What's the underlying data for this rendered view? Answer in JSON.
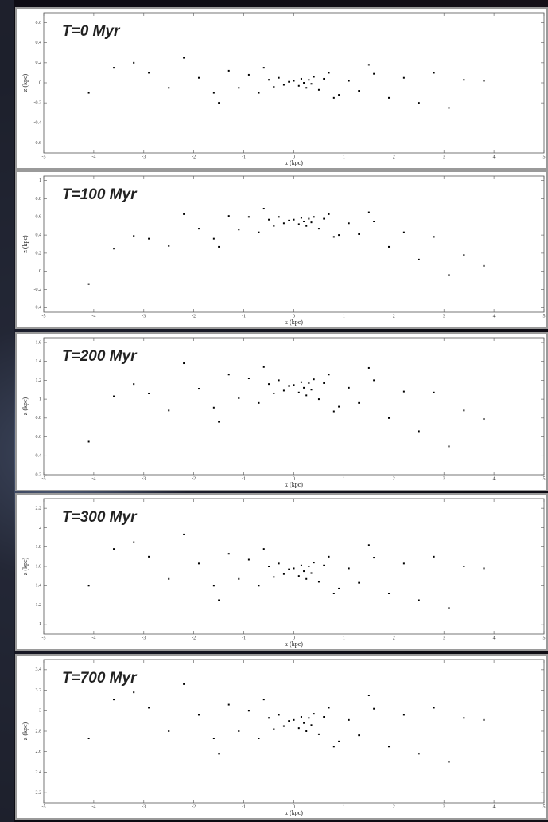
{
  "chart_data": [
    {
      "type": "scatter",
      "title": "T=0 Myr",
      "x_label": "x (kpc)",
      "y_label": "z (kpc)",
      "color": "#000000",
      "xlim": [
        -5,
        5
      ],
      "ylim": [
        -0.7,
        0.7
      ],
      "xticks": [
        -5,
        -4,
        -3,
        -2,
        -1,
        0,
        1,
        2,
        3,
        4,
        5
      ],
      "yticks": [
        -0.6,
        -0.4,
        -0.2,
        0,
        0.2,
        0.4,
        0.6
      ],
      "x": [
        -4.1,
        -3.6,
        -3.2,
        -2.9,
        -2.5,
        -2.2,
        -1.9,
        -1.6,
        -1.3,
        -1.1,
        -0.9,
        -0.7,
        -0.5,
        -0.4,
        -0.3,
        -0.2,
        -0.1,
        0,
        0.1,
        0.15,
        0.2,
        0.25,
        0.3,
        0.35,
        0.4,
        0.5,
        0.6,
        0.7,
        0.9,
        1.1,
        1.3,
        1.6,
        1.9,
        2.2,
        2.5,
        2.8,
        3.1,
        3.4,
        3.8,
        -0.6,
        0.8,
        -1.5,
        1.5
      ],
      "y": [
        -0.1,
        0.15,
        0.2,
        0.1,
        -0.05,
        0.25,
        0.05,
        -0.1,
        0.12,
        -0.05,
        0.08,
        -0.1,
        0.03,
        -0.04,
        0.05,
        -0.02,
        0.01,
        0.02,
        -0.03,
        0.04,
        0,
        -0.05,
        0.03,
        -0.01,
        0.06,
        -0.07,
        0.04,
        0.1,
        -0.12,
        0.02,
        -0.08,
        0.09,
        -0.15,
        0.05,
        -0.2,
        0.1,
        -0.25,
        0.03,
        0.02,
        0.15,
        -0.15,
        -0.2,
        0.18
      ]
    },
    {
      "type": "scatter",
      "title": "T=100 Myr",
      "x_label": "x (kpc)",
      "y_label": "z (kpc)",
      "color": "#000000",
      "xlim": [
        -5,
        5
      ],
      "ylim": [
        -0.45,
        1.05
      ],
      "xticks": [
        -5,
        -4,
        -3,
        -2,
        -1,
        0,
        1,
        2,
        3,
        4,
        5
      ],
      "yticks": [
        -0.4,
        -0.2,
        0,
        0.2,
        0.4,
        0.6,
        0.8,
        1
      ],
      "x": [
        -4.1,
        -3.6,
        -3.2,
        -2.9,
        -2.5,
        -2.2,
        -1.9,
        -1.6,
        -1.3,
        -1.1,
        -0.9,
        -0.7,
        -0.5,
        -0.4,
        -0.3,
        -0.2,
        -0.1,
        0,
        0.1,
        0.15,
        0.2,
        0.25,
        0.3,
        0.35,
        0.4,
        0.5,
        0.6,
        0.7,
        0.9,
        1.1,
        1.3,
        1.6,
        1.9,
        2.2,
        2.5,
        2.8,
        3.1,
        3.4,
        3.8,
        -0.6,
        0.8,
        -1.5,
        1.5
      ],
      "y": [
        -0.14,
        0.25,
        0.39,
        0.36,
        0.28,
        0.63,
        0.47,
        0.36,
        0.61,
        0.46,
        0.6,
        0.43,
        0.57,
        0.5,
        0.6,
        0.53,
        0.56,
        0.57,
        0.52,
        0.59,
        0.55,
        0.5,
        0.58,
        0.54,
        0.6,
        0.47,
        0.58,
        0.63,
        0.4,
        0.53,
        0.41,
        0.55,
        0.27,
        0.43,
        0.13,
        0.38,
        -0.04,
        0.18,
        0.06,
        0.69,
        0.38,
        0.27,
        0.65
      ]
    },
    {
      "type": "scatter",
      "title": "T=200 Myr",
      "x_label": "x (kpc)",
      "y_label": "z (kpc)",
      "color": "#000000",
      "xlim": [
        -5,
        5
      ],
      "ylim": [
        0.2,
        1.65
      ],
      "xticks": [
        -5,
        -4,
        -3,
        -2,
        -1,
        0,
        1,
        2,
        3,
        4,
        5
      ],
      "yticks": [
        0.2,
        0.4,
        0.6,
        0.8,
        1,
        1.2,
        1.4,
        1.6
      ],
      "x": [
        -4.1,
        -3.6,
        -3.2,
        -2.9,
        -2.5,
        -2.2,
        -1.9,
        -1.6,
        -1.3,
        -1.1,
        -0.9,
        -0.7,
        -0.5,
        -0.4,
        -0.3,
        -0.2,
        -0.1,
        0,
        0.1,
        0.15,
        0.2,
        0.25,
        0.3,
        0.35,
        0.4,
        0.5,
        0.6,
        0.7,
        0.9,
        1.1,
        1.3,
        1.6,
        1.9,
        2.2,
        2.5,
        2.8,
        3.1,
        3.4,
        3.8,
        -0.6,
        0.8,
        -1.5,
        1.5
      ],
      "y": [
        0.55,
        1.03,
        1.16,
        1.06,
        0.88,
        1.38,
        1.11,
        0.91,
        1.26,
        1.01,
        1.22,
        0.96,
        1.16,
        1.06,
        1.2,
        1.09,
        1.14,
        1.15,
        1.07,
        1.18,
        1.12,
        1.04,
        1.17,
        1.1,
        1.21,
        1.0,
        1.17,
        1.26,
        0.92,
        1.12,
        0.96,
        1.2,
        0.8,
        1.08,
        0.66,
        1.07,
        0.5,
        0.88,
        0.79,
        1.34,
        0.87,
        0.76,
        1.33
      ]
    },
    {
      "type": "scatter",
      "title": "T=300 Myr",
      "x_label": "x (kpc)",
      "y_label": "z (kpc)",
      "color": "#000000",
      "xlim": [
        -5,
        5
      ],
      "ylim": [
        0.9,
        2.3
      ],
      "xticks": [
        -5,
        -4,
        -3,
        -2,
        -1,
        0,
        1,
        2,
        3,
        4,
        5
      ],
      "yticks": [
        1,
        1.2,
        1.4,
        1.6,
        1.8,
        2,
        2.2
      ],
      "x": [
        -4.1,
        -3.6,
        -3.2,
        -2.9,
        -2.5,
        -2.2,
        -1.9,
        -1.6,
        -1.3,
        -1.1,
        -0.9,
        -0.7,
        -0.5,
        -0.4,
        -0.3,
        -0.2,
        -0.1,
        0,
        0.1,
        0.15,
        0.2,
        0.25,
        0.3,
        0.35,
        0.4,
        0.5,
        0.6,
        0.7,
        0.9,
        1.1,
        1.3,
        1.6,
        1.9,
        2.2,
        2.5,
        2.8,
        3.1,
        3.4,
        3.8,
        -0.6,
        0.8,
        -1.5,
        1.5
      ],
      "y": [
        1.4,
        1.78,
        1.85,
        1.7,
        1.47,
        1.93,
        1.63,
        1.4,
        1.73,
        1.47,
        1.67,
        1.4,
        1.6,
        1.49,
        1.63,
        1.52,
        1.57,
        1.58,
        1.5,
        1.61,
        1.55,
        1.47,
        1.6,
        1.53,
        1.64,
        1.44,
        1.61,
        1.7,
        1.37,
        1.58,
        1.43,
        1.69,
        1.32,
        1.63,
        1.25,
        1.7,
        1.17,
        1.6,
        1.58,
        1.78,
        1.32,
        1.25,
        1.82
      ]
    },
    {
      "type": "scatter",
      "title": "T=700 Myr",
      "x_label": "x (kpc)",
      "y_label": "z (kpc)",
      "color": "#000000",
      "xlim": [
        -5,
        5
      ],
      "ylim": [
        2.1,
        3.5
      ],
      "xticks": [
        -5,
        -4,
        -3,
        -2,
        -1,
        0,
        1,
        2,
        3,
        4,
        5
      ],
      "yticks": [
        2.2,
        2.4,
        2.6,
        2.8,
        3,
        3.2,
        3.4
      ],
      "x": [
        -4.1,
        -3.6,
        -3.2,
        -2.9,
        -2.5,
        -2.2,
        -1.9,
        -1.6,
        -1.3,
        -1.1,
        -0.9,
        -0.7,
        -0.5,
        -0.4,
        -0.3,
        -0.2,
        -0.1,
        0,
        0.1,
        0.15,
        0.2,
        0.25,
        0.3,
        0.35,
        0.4,
        0.5,
        0.6,
        0.7,
        0.9,
        1.1,
        1.3,
        1.6,
        1.9,
        2.2,
        2.5,
        2.8,
        3.1,
        3.4,
        3.8,
        -0.6,
        0.8,
        -1.5,
        1.5
      ],
      "y": [
        2.73,
        3.11,
        3.18,
        3.03,
        2.8,
        3.26,
        2.96,
        2.73,
        3.06,
        2.8,
        3.0,
        2.73,
        2.93,
        2.82,
        2.96,
        2.85,
        2.9,
        2.91,
        2.83,
        2.94,
        2.88,
        2.8,
        2.93,
        2.86,
        2.97,
        2.77,
        2.94,
        3.03,
        2.7,
        2.91,
        2.76,
        3.02,
        2.65,
        2.96,
        2.58,
        3.03,
        2.5,
        2.93,
        2.91,
        3.11,
        2.65,
        2.58,
        3.15
      ]
    }
  ]
}
